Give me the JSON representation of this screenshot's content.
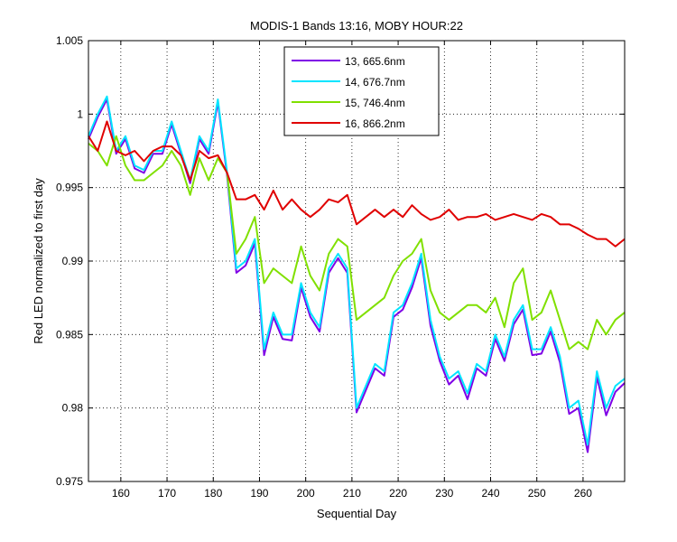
{
  "chart_data": {
    "type": "line",
    "title": "MODIS-1 Bands 13:16, MOBY HOUR:22",
    "xlabel": "Sequential Day",
    "ylabel": "Red LED normalized to first day",
    "x": [
      153,
      155,
      157,
      159,
      161,
      163,
      165,
      167,
      169,
      171,
      173,
      175,
      177,
      179,
      181,
      183,
      185,
      187,
      189,
      191,
      193,
      195,
      197,
      199,
      201,
      203,
      205,
      207,
      209,
      211,
      213,
      215,
      217,
      219,
      221,
      223,
      225,
      227,
      229,
      231,
      233,
      235,
      237,
      239,
      241,
      243,
      245,
      247,
      249,
      251,
      253,
      255,
      257,
      259,
      261,
      263,
      265,
      267,
      269
    ],
    "series": [
      {
        "name": "13, 665.6nm",
        "color": "#7f00e6",
        "values": [
          0.9983,
          0.9998,
          1.001,
          0.9973,
          0.9983,
          0.9963,
          0.996,
          0.9973,
          0.9973,
          0.9993,
          0.9973,
          0.9953,
          0.9983,
          0.9973,
          1.0008,
          0.9958,
          0.9892,
          0.9897,
          0.9912,
          0.9836,
          0.9862,
          0.9847,
          0.9846,
          0.9882,
          0.9862,
          0.9852,
          0.9892,
          0.9902,
          0.9892,
          0.9797,
          0.9812,
          0.9827,
          0.9822,
          0.9862,
          0.9867,
          0.9882,
          0.9902,
          0.9856,
          0.9832,
          0.9816,
          0.9822,
          0.9806,
          0.9827,
          0.9822,
          0.9847,
          0.9832,
          0.9857,
          0.9867,
          0.9836,
          0.9837,
          0.9852,
          0.9831,
          0.9796,
          0.98,
          0.977,
          0.9821,
          0.9795,
          0.9811,
          0.9817
        ]
      },
      {
        "name": "14, 676.7nm",
        "color": "#00e5ff",
        "values": [
          0.9985,
          1.0,
          1.0012,
          0.9975,
          0.9985,
          0.9965,
          0.9962,
          0.9975,
          0.9975,
          0.9995,
          0.9975,
          0.9955,
          0.9985,
          0.9975,
          1.001,
          0.996,
          0.9895,
          0.99,
          0.9915,
          0.984,
          0.9865,
          0.985,
          0.985,
          0.9885,
          0.9865,
          0.9855,
          0.9895,
          0.9905,
          0.9895,
          0.98,
          0.9815,
          0.983,
          0.9825,
          0.9865,
          0.987,
          0.9885,
          0.9905,
          0.986,
          0.9835,
          0.982,
          0.9825,
          0.981,
          0.983,
          0.9825,
          0.985,
          0.9835,
          0.986,
          0.987,
          0.984,
          0.984,
          0.9855,
          0.9835,
          0.98,
          0.9805,
          0.9775,
          0.9825,
          0.98,
          0.9815,
          0.982
        ]
      },
      {
        "name": "15, 746.4nm",
        "color": "#80e000",
        "values": [
          0.998,
          0.9975,
          0.9965,
          0.9985,
          0.9965,
          0.9955,
          0.9955,
          0.996,
          0.9965,
          0.9975,
          0.9965,
          0.9945,
          0.997,
          0.9955,
          0.997,
          0.996,
          0.9905,
          0.9915,
          0.993,
          0.9885,
          0.9895,
          0.989,
          0.9885,
          0.991,
          0.989,
          0.988,
          0.9905,
          0.9915,
          0.991,
          0.986,
          0.9865,
          0.987,
          0.9875,
          0.989,
          0.99,
          0.9905,
          0.9915,
          0.988,
          0.9865,
          0.986,
          0.9865,
          0.987,
          0.987,
          0.9865,
          0.9875,
          0.9855,
          0.9885,
          0.9895,
          0.986,
          0.9865,
          0.988,
          0.986,
          0.984,
          0.9845,
          0.984,
          0.986,
          0.985,
          0.986,
          0.9865
        ]
      },
      {
        "name": "16, 866.2nm",
        "color": "#e00000",
        "values": [
          0.9985,
          0.9975,
          0.9995,
          0.9975,
          0.9972,
          0.9975,
          0.9968,
          0.9975,
          0.9978,
          0.9978,
          0.9972,
          0.9955,
          0.9975,
          0.997,
          0.9972,
          0.996,
          0.9942,
          0.9942,
          0.9945,
          0.9935,
          0.9948,
          0.9935,
          0.9942,
          0.9935,
          0.993,
          0.9935,
          0.9942,
          0.994,
          0.9945,
          0.9925,
          0.993,
          0.9935,
          0.993,
          0.9935,
          0.993,
          0.9938,
          0.9932,
          0.9928,
          0.993,
          0.9935,
          0.9928,
          0.993,
          0.993,
          0.9932,
          0.9928,
          0.993,
          0.9932,
          0.993,
          0.9928,
          0.9932,
          0.993,
          0.9925,
          0.9925,
          0.9922,
          0.9918,
          0.9915,
          0.9915,
          0.991,
          0.9915
        ]
      }
    ],
    "xlim": [
      153,
      269
    ],
    "ylim": [
      0.975,
      1.005
    ],
    "xticks": [
      160,
      170,
      180,
      190,
      200,
      210,
      220,
      230,
      240,
      250,
      260
    ],
    "yticks": [
      0.975,
      0.98,
      0.985,
      0.99,
      0.995,
      1,
      1.005
    ],
    "grid": true,
    "legend": "top"
  }
}
